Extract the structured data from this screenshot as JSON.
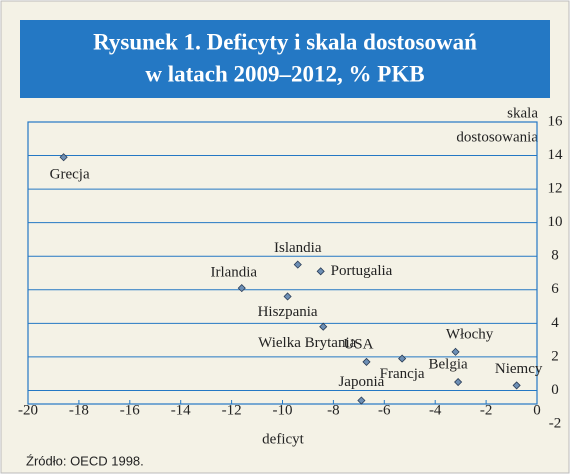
{
  "chart_data": {
    "type": "scatter",
    "title": [
      "Rysunek 1. Deficyty i skala dostosowań",
      "w latach 2009–2012, % PKB"
    ],
    "x_label": "deficyt",
    "y_label": [
      "skala",
      "dostosowania"
    ],
    "source": "Źródło: OECD 1998.",
    "point_labels": [
      "Grecja",
      "Islandia",
      "Portugalia",
      "Irlandia",
      "Hiszpania",
      "Wielka Brytania",
      "USA",
      "Francja",
      "Włochy",
      "Belgia",
      "Niemcy",
      "Japonia"
    ],
    "x": [
      -18.6,
      -9.4,
      -8.5,
      -11.6,
      -9.8,
      -8.4,
      -6.7,
      -5.3,
      -3.2,
      -3.1,
      -0.8,
      -6.9
    ],
    "values": [
      13.9,
      7.5,
      7.1,
      6.1,
      5.6,
      3.8,
      1.7,
      1.9,
      2.3,
      0.5,
      0.3,
      -0.6
    ],
    "color": "#6d8fb5",
    "xlim": [
      -20,
      0
    ],
    "ylim": [
      -2,
      16
    ],
    "xticks": [
      -20,
      -18,
      -16,
      -14,
      -12,
      -10,
      -8,
      -6,
      -4,
      -2,
      0
    ],
    "yticks": [
      -2,
      0,
      2,
      4,
      6,
      8,
      10,
      12,
      14,
      16
    ],
    "grid": true
  }
}
